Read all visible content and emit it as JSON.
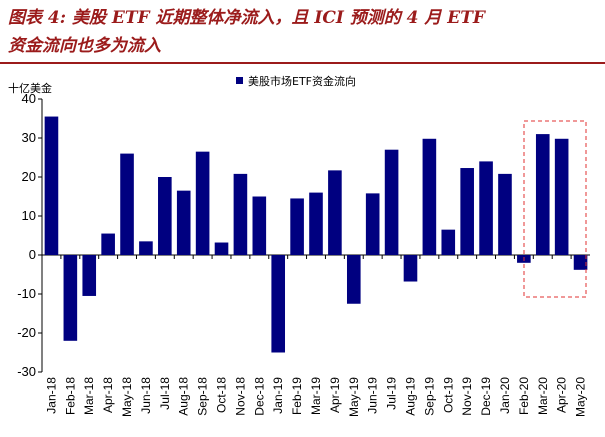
{
  "title": {
    "line1": "图表 4:  美股 ETF 近期整体净流入，且 ICI 预测的 4 月 ETF",
    "line2": "资金流向也多为流入"
  },
  "colors": {
    "bar": "#000080",
    "title": "#9b1b1b",
    "highlight": "#e03030"
  },
  "chart_data": {
    "type": "bar",
    "title": "",
    "unit_label": "十亿美金",
    "xlabel": "",
    "ylabel": "十亿美金",
    "ylim": [
      -30,
      40
    ],
    "yticks": [
      -30,
      -20,
      -10,
      0,
      10,
      20,
      30,
      40
    ],
    "grid": false,
    "legend": {
      "position": "top-center",
      "entries": [
        "美股市场ETF资金流向"
      ]
    },
    "categories": [
      "Jan-18",
      "Feb-18",
      "Mar-18",
      "Apr-18",
      "May-18",
      "Jun-18",
      "Jul-18",
      "Aug-18",
      "Sep-18",
      "Oct-18",
      "Nov-18",
      "Dec-18",
      "Jan-19",
      "Feb-19",
      "Mar-19",
      "Apr-19",
      "May-19",
      "Jun-19",
      "Jul-19",
      "Aug-19",
      "Sep-19",
      "Oct-19",
      "Nov-19",
      "Dec-19",
      "Jan-20",
      "Feb-20",
      "Mar-20",
      "Apr-20",
      "May-20"
    ],
    "series": [
      {
        "name": "美股市场ETF资金流向",
        "values": [
          35.5,
          -22,
          -10.5,
          5.5,
          26,
          3.5,
          20,
          16.5,
          26.5,
          3.2,
          20.8,
          15,
          -25,
          14.5,
          16,
          21.7,
          -12.5,
          15.8,
          27,
          -6.8,
          29.8,
          6.5,
          22.3,
          24,
          20.8,
          -2,
          31,
          29.8,
          -3.8
        ]
      }
    ],
    "highlight_categories": [
      "Mar-20",
      "Apr-20",
      "May-20"
    ]
  }
}
